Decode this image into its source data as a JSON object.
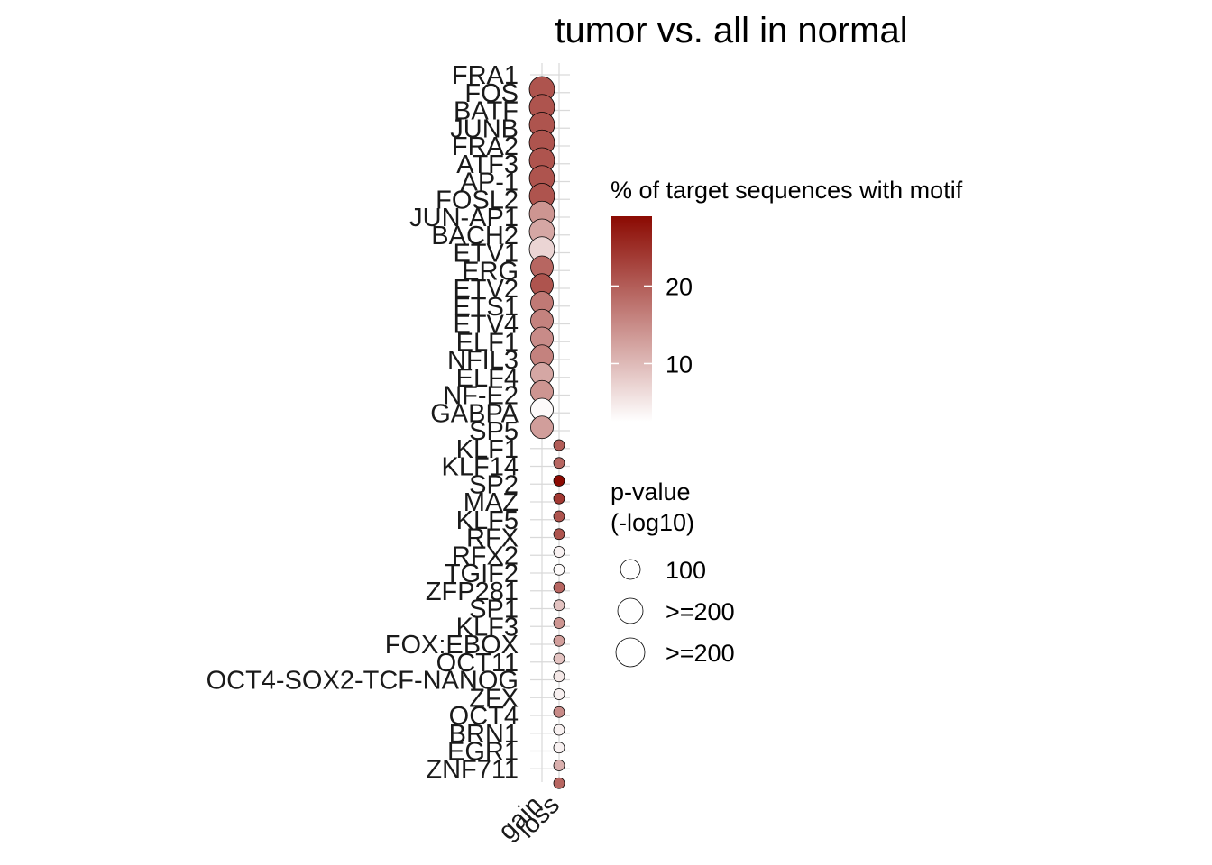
{
  "chart_data": {
    "type": "scatter",
    "title": "tumor vs. all in normal",
    "xlabel": "",
    "ylabel": "",
    "x_categories": [
      "gain",
      "loss"
    ],
    "grid": true,
    "legend_position": "right",
    "points": [
      {
        "motif": "FRA1",
        "group": "gain",
        "pct": 21,
        "size_level": 3
      },
      {
        "motif": "FOS",
        "group": "gain",
        "pct": 21,
        "size_level": 3
      },
      {
        "motif": "BATF",
        "group": "gain",
        "pct": 21,
        "size_level": 3
      },
      {
        "motif": "JUNB",
        "group": "gain",
        "pct": 21,
        "size_level": 3
      },
      {
        "motif": "FRA2",
        "group": "gain",
        "pct": 21,
        "size_level": 3
      },
      {
        "motif": "ATF3",
        "group": "gain",
        "pct": 21,
        "size_level": 3
      },
      {
        "motif": "AP-1",
        "group": "gain",
        "pct": 21,
        "size_level": 3
      },
      {
        "motif": "FOSL2",
        "group": "gain",
        "pct": 14,
        "size_level": 3
      },
      {
        "motif": "JUN-AP1",
        "group": "gain",
        "pct": 12,
        "size_level": 3
      },
      {
        "motif": "BACH2",
        "group": "gain",
        "pct": 7,
        "size_level": 3
      },
      {
        "motif": "ETV1",
        "group": "gain",
        "pct": 19,
        "size_level": 2
      },
      {
        "motif": "ERG",
        "group": "gain",
        "pct": 21,
        "size_level": 2
      },
      {
        "motif": "ETV2",
        "group": "gain",
        "pct": 17,
        "size_level": 2
      },
      {
        "motif": "ETS1",
        "group": "gain",
        "pct": 16,
        "size_level": 2
      },
      {
        "motif": "ETV4",
        "group": "gain",
        "pct": 15,
        "size_level": 2
      },
      {
        "motif": "ELF1",
        "group": "gain",
        "pct": 16,
        "size_level": 2
      },
      {
        "motif": "NFIL3",
        "group": "gain",
        "pct": 12,
        "size_level": 2
      },
      {
        "motif": "ELF4",
        "group": "gain",
        "pct": 14,
        "size_level": 2
      },
      {
        "motif": "NF-E2",
        "group": "gain",
        "pct": 3,
        "size_level": 2
      },
      {
        "motif": "GABPA",
        "group": "gain",
        "pct": 13,
        "size_level": 2
      },
      {
        "motif": "SP5",
        "group": "loss",
        "pct": 20,
        "size_level": 0
      },
      {
        "motif": "KLF1",
        "group": "loss",
        "pct": 19,
        "size_level": 0
      },
      {
        "motif": "KLF14",
        "group": "loss",
        "pct": 29,
        "size_level": 0
      },
      {
        "motif": "SP2",
        "group": "loss",
        "pct": 24,
        "size_level": 0
      },
      {
        "motif": "MAZ",
        "group": "loss",
        "pct": 21,
        "size_level": 0
      },
      {
        "motif": "KLF5",
        "group": "loss",
        "pct": 21,
        "size_level": 0
      },
      {
        "motif": "RFX",
        "group": "loss",
        "pct": 4,
        "size_level": 0
      },
      {
        "motif": "RFX2",
        "group": "loss",
        "pct": 3,
        "size_level": 0
      },
      {
        "motif": "TGIF2",
        "group": "loss",
        "pct": 19,
        "size_level": 0
      },
      {
        "motif": "ZFP281",
        "group": "loss",
        "pct": 9,
        "size_level": 0
      },
      {
        "motif": "SP1",
        "group": "loss",
        "pct": 14,
        "size_level": 0
      },
      {
        "motif": "KLF3",
        "group": "loss",
        "pct": 13,
        "size_level": 0
      },
      {
        "motif": "FOX:EBOX",
        "group": "loss",
        "pct": 9,
        "size_level": 0
      },
      {
        "motif": "OCT11",
        "group": "loss",
        "pct": 5,
        "size_level": 0
      },
      {
        "motif": "OCT4-SOX2-TCF-NANOG",
        "group": "loss",
        "pct": 4,
        "size_level": 0
      },
      {
        "motif": "ZFX",
        "group": "loss",
        "pct": 15,
        "size_level": 0
      },
      {
        "motif": "OCT4",
        "group": "loss",
        "pct": 4,
        "size_level": 0
      },
      {
        "motif": "BRN1",
        "group": "loss",
        "pct": 4,
        "size_level": 0
      },
      {
        "motif": "EGR1",
        "group": "loss",
        "pct": 11,
        "size_level": 0
      },
      {
        "motif": "ZNF711",
        "group": "loss",
        "pct": 19,
        "size_level": 0
      }
    ],
    "color_legend": {
      "title": "% of target sequences with motif",
      "ticks": [
        10,
        20
      ],
      "range": [
        2.5,
        29
      ],
      "low_color": "#ffffff",
      "high_color": "#8b0a02"
    },
    "size_legend": {
      "title": "p-value\n(-log10)",
      "title_lines": [
        "p-value",
        "(-log10)"
      ],
      "entries": [
        "100",
        ">=200",
        ">=200"
      ]
    }
  }
}
